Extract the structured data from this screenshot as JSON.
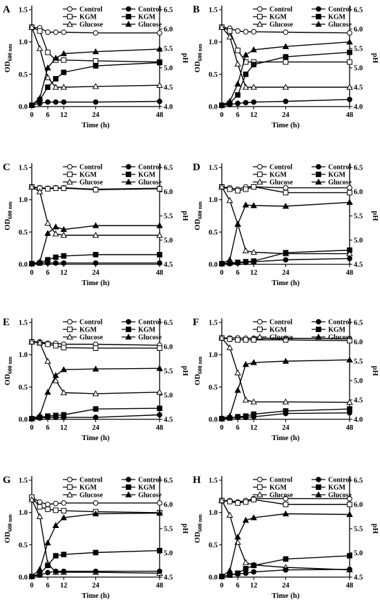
{
  "figure": {
    "x_axis_label": "Time (h)",
    "y_left_label": "OD600 nm",
    "y_left_base": "OD",
    "y_left_sub": "600 nm",
    "y_right_label": "pH",
    "od_ticks": [
      "0.0",
      "0.5",
      "1.0",
      "1.5"
    ],
    "x_ticks": [
      "0",
      "6",
      "12",
      "24",
      "48"
    ]
  },
  "legend_labels": [
    "Control",
    "KGM",
    "Glucose"
  ],
  "chart_data": [
    {
      "type": "line",
      "panel": "A",
      "x": [
        0,
        3,
        6,
        9,
        12,
        24,
        48
      ],
      "xlim": [
        0,
        48
      ],
      "od_ylim": [
        0,
        1.5
      ],
      "ph_ylim": [
        4.0,
        6.5
      ],
      "ph_ticks": [
        "4.0",
        "4.5",
        "5.0",
        "5.5",
        "6.0",
        "6.5"
      ],
      "series": [
        {
          "name": "Control",
          "axis": "ph",
          "marker": "circle",
          "filled": false,
          "values": [
            6.05,
            6.03,
            5.92,
            5.92,
            5.92,
            5.9,
            5.9
          ]
        },
        {
          "name": "KGM",
          "axis": "ph",
          "marker": "square",
          "filled": false,
          "values": [
            6.05,
            5.95,
            5.4,
            5.2,
            5.2,
            5.18,
            5.15
          ]
        },
        {
          "name": "Glucose",
          "axis": "ph",
          "marker": "triangle",
          "filled": false,
          "values": [
            6.05,
            5.5,
            4.75,
            4.5,
            4.5,
            4.52,
            4.55
          ]
        },
        {
          "name": "Control",
          "axis": "od",
          "marker": "circle",
          "filled": true,
          "values": [
            0.02,
            0.05,
            0.07,
            0.07,
            0.07,
            0.07,
            0.08
          ]
        },
        {
          "name": "KGM",
          "axis": "od",
          "marker": "square",
          "filled": true,
          "values": [
            0.02,
            0.1,
            0.3,
            0.43,
            0.53,
            0.63,
            0.68
          ]
        },
        {
          "name": "Glucose",
          "axis": "od",
          "marker": "triangle",
          "filled": true,
          "values": [
            0.02,
            0.13,
            0.6,
            0.75,
            0.82,
            0.85,
            0.89
          ]
        }
      ]
    },
    {
      "type": "line",
      "panel": "B",
      "x": [
        0,
        3,
        6,
        9,
        12,
        24,
        48
      ],
      "xlim": [
        0,
        48
      ],
      "od_ylim": [
        0,
        1.5
      ],
      "ph_ylim": [
        4.0,
        6.5
      ],
      "ph_ticks": [
        "4.0",
        "4.5",
        "5.0",
        "5.5",
        "6.0",
        "6.5"
      ],
      "series": [
        {
          "name": "Control",
          "axis": "ph",
          "marker": "circle",
          "filled": false,
          "values": [
            6.05,
            6.02,
            5.95,
            5.93,
            5.93,
            5.92,
            5.9
          ]
        },
        {
          "name": "KGM",
          "axis": "ph",
          "marker": "square",
          "filled": false,
          "values": [
            6.05,
            5.95,
            5.45,
            5.15,
            5.15,
            5.15,
            5.15
          ]
        },
        {
          "name": "Glucose",
          "axis": "ph",
          "marker": "triangle",
          "filled": false,
          "values": [
            6.05,
            5.8,
            5.1,
            4.5,
            4.5,
            4.5,
            4.5
          ]
        },
        {
          "name": "Control",
          "axis": "od",
          "marker": "circle",
          "filled": true,
          "values": [
            0.02,
            0.03,
            0.05,
            0.06,
            0.07,
            0.08,
            0.11
          ]
        },
        {
          "name": "KGM",
          "axis": "od",
          "marker": "square",
          "filled": true,
          "values": [
            0.02,
            0.05,
            0.18,
            0.5,
            0.65,
            0.77,
            0.84
          ]
        },
        {
          "name": "Glucose",
          "axis": "od",
          "marker": "triangle",
          "filled": true,
          "values": [
            0.02,
            0.08,
            0.35,
            0.8,
            0.88,
            0.93,
            1.0
          ]
        }
      ]
    },
    {
      "type": "line",
      "panel": "C",
      "x": [
        0,
        3,
        6,
        9,
        12,
        24,
        48
      ],
      "xlim": [
        0,
        48
      ],
      "od_ylim": [
        0,
        1.5
      ],
      "ph_ylim": [
        4.5,
        6.5
      ],
      "ph_ticks": [
        "4.5",
        "5.0",
        "5.5",
        "6.0",
        "6.5"
      ],
      "series": [
        {
          "name": "Control",
          "axis": "ph",
          "marker": "circle",
          "filled": false,
          "values": [
            6.1,
            6.08,
            6.07,
            6.08,
            6.08,
            6.05,
            6.07
          ]
        },
        {
          "name": "KGM",
          "axis": "ph",
          "marker": "square",
          "filled": false,
          "values": [
            6.1,
            6.07,
            6.06,
            6.07,
            6.07,
            6.04,
            6.06
          ]
        },
        {
          "name": "Glucose",
          "axis": "ph",
          "marker": "triangle",
          "filled": false,
          "values": [
            6.1,
            6.0,
            5.35,
            5.13,
            5.1,
            5.1,
            5.1
          ]
        },
        {
          "name": "Control",
          "axis": "od",
          "marker": "circle",
          "filled": true,
          "values": [
            0.01,
            0.02,
            0.02,
            0.02,
            0.02,
            0.02,
            0.02
          ]
        },
        {
          "name": "KGM",
          "axis": "od",
          "marker": "square",
          "filled": true,
          "values": [
            0.01,
            0.02,
            0.07,
            0.11,
            0.13,
            0.15,
            0.15
          ]
        },
        {
          "name": "Glucose",
          "axis": "od",
          "marker": "triangle",
          "filled": true,
          "values": [
            0.01,
            0.04,
            0.48,
            0.58,
            0.54,
            0.6,
            0.6
          ]
        }
      ]
    },
    {
      "type": "line",
      "panel": "D",
      "x": [
        0,
        3,
        6,
        9,
        12,
        24,
        48
      ],
      "xlim": [
        0,
        48
      ],
      "od_ylim": [
        0,
        1.5
      ],
      "ph_ylim": [
        4.5,
        6.5
      ],
      "ph_ticks": [
        "4.5",
        "5.0",
        "5.5",
        "6.0",
        "6.5"
      ],
      "series": [
        {
          "name": "Control",
          "axis": "ph",
          "marker": "circle",
          "filled": false,
          "values": [
            6.1,
            6.08,
            6.05,
            6.1,
            6.1,
            6.08,
            6.08
          ]
        },
        {
          "name": "KGM",
          "axis": "ph",
          "marker": "square",
          "filled": false,
          "values": [
            6.1,
            6.05,
            6.02,
            6.05,
            6.1,
            5.98,
            5.98
          ]
        },
        {
          "name": "Glucose",
          "axis": "ph",
          "marker": "triangle",
          "filled": false,
          "values": [
            6.1,
            5.82,
            5.33,
            4.78,
            4.75,
            4.72,
            4.72
          ]
        },
        {
          "name": "Control",
          "axis": "od",
          "marker": "circle",
          "filled": true,
          "values": [
            0.01,
            0.01,
            0.02,
            0.03,
            0.04,
            0.07,
            0.09
          ]
        },
        {
          "name": "KGM",
          "axis": "od",
          "marker": "square",
          "filled": true,
          "values": [
            0.01,
            0.02,
            0.03,
            0.04,
            0.05,
            0.18,
            0.22
          ]
        },
        {
          "name": "Glucose",
          "axis": "od",
          "marker": "triangle",
          "filled": true,
          "values": [
            0.01,
            0.07,
            0.62,
            0.92,
            0.91,
            0.9,
            0.96
          ]
        }
      ]
    },
    {
      "type": "line",
      "panel": "E",
      "x": [
        0,
        3,
        6,
        9,
        12,
        24,
        48
      ],
      "xlim": [
        0,
        48
      ],
      "od_ylim": [
        0,
        1.5
      ],
      "ph_ylim": [
        4.5,
        6.5
      ],
      "ph_ticks": [
        "4.5",
        "5.0",
        "5.5",
        "6.0",
        "6.5"
      ],
      "series": [
        {
          "name": "Control",
          "axis": "ph",
          "marker": "circle",
          "filled": false,
          "values": [
            6.1,
            6.1,
            6.07,
            6.07,
            6.05,
            6.05,
            6.03
          ]
        },
        {
          "name": "KGM",
          "axis": "ph",
          "marker": "square",
          "filled": false,
          "values": [
            6.1,
            6.08,
            6.05,
            6.02,
            5.98,
            5.97,
            5.97
          ]
        },
        {
          "name": "Glucose",
          "axis": "ph",
          "marker": "triangle",
          "filled": false,
          "values": [
            6.1,
            6.08,
            5.7,
            5.3,
            5.05,
            5.03,
            5.06
          ]
        },
        {
          "name": "Control",
          "axis": "od",
          "marker": "circle",
          "filled": true,
          "values": [
            0.01,
            0.02,
            0.03,
            0.03,
            0.03,
            0.03,
            0.07
          ]
        },
        {
          "name": "KGM",
          "axis": "od",
          "marker": "square",
          "filled": true,
          "values": [
            0.01,
            0.03,
            0.05,
            0.06,
            0.07,
            0.16,
            0.17
          ]
        },
        {
          "name": "Glucose",
          "axis": "od",
          "marker": "triangle",
          "filled": true,
          "values": [
            0.01,
            0.06,
            0.42,
            0.68,
            0.77,
            0.78,
            0.79
          ]
        }
      ]
    },
    {
      "type": "line",
      "panel": "F",
      "x": [
        0,
        3,
        6,
        9,
        12,
        24,
        48
      ],
      "xlim": [
        0,
        48
      ],
      "od_ylim": [
        0,
        1.5
      ],
      "ph_ylim": [
        4.0,
        6.5
      ],
      "ph_ticks": [
        "4.0",
        "4.5",
        "5.0",
        "5.5",
        "6.0",
        "6.5"
      ],
      "series": [
        {
          "name": "Control",
          "axis": "ph",
          "marker": "circle",
          "filled": false,
          "values": [
            6.1,
            6.1,
            6.1,
            6.09,
            6.09,
            6.09,
            6.08
          ]
        },
        {
          "name": "KGM",
          "axis": "ph",
          "marker": "square",
          "filled": false,
          "values": [
            6.1,
            6.07,
            6.05,
            6.05,
            6.05,
            6.05,
            6.03
          ]
        },
        {
          "name": "Glucose",
          "axis": "ph",
          "marker": "triangle",
          "filled": false,
          "values": [
            6.1,
            5.85,
            5.2,
            4.5,
            4.45,
            4.45,
            4.44
          ]
        },
        {
          "name": "Control",
          "axis": "od",
          "marker": "circle",
          "filled": true,
          "values": [
            0.01,
            0.02,
            0.03,
            0.03,
            0.04,
            0.09,
            0.1
          ]
        },
        {
          "name": "KGM",
          "axis": "od",
          "marker": "square",
          "filled": true,
          "values": [
            0.01,
            0.02,
            0.04,
            0.05,
            0.08,
            0.13,
            0.16
          ]
        },
        {
          "name": "Glucose",
          "axis": "od",
          "marker": "triangle",
          "filled": true,
          "values": [
            0.01,
            0.05,
            0.45,
            0.85,
            0.88,
            0.9,
            0.92
          ]
        }
      ]
    },
    {
      "type": "line",
      "panel": "G",
      "x": [
        0,
        3,
        6,
        9,
        12,
        24,
        48
      ],
      "xlim": [
        0,
        48
      ],
      "od_ylim": [
        0,
        1.5
      ],
      "ph_ylim": [
        4.5,
        6.5
      ],
      "ph_ticks": [
        "4.5",
        "5.0",
        "5.5",
        "6.0",
        "6.5"
      ],
      "series": [
        {
          "name": "Control",
          "axis": "ph",
          "marker": "circle",
          "filled": false,
          "values": [
            6.15,
            6.05,
            6.0,
            6.02,
            6.03,
            6.03,
            6.03
          ]
        },
        {
          "name": "KGM",
          "axis": "ph",
          "marker": "square",
          "filled": false,
          "values": [
            6.15,
            5.95,
            5.9,
            5.88,
            5.87,
            5.85,
            5.83
          ]
        },
        {
          "name": "Glucose",
          "axis": "ph",
          "marker": "triangle",
          "filled": false,
          "values": [
            6.1,
            5.75,
            4.78,
            4.6,
            4.6,
            4.6,
            4.58
          ]
        },
        {
          "name": "Control",
          "axis": "od",
          "marker": "circle",
          "filled": true,
          "values": [
            0.01,
            0.03,
            0.07,
            0.09,
            0.09,
            0.09,
            0.09
          ]
        },
        {
          "name": "KGM",
          "axis": "od",
          "marker": "square",
          "filled": true,
          "values": [
            0.01,
            0.05,
            0.18,
            0.33,
            0.35,
            0.38,
            0.41
          ]
        },
        {
          "name": "Glucose",
          "axis": "od",
          "marker": "triangle",
          "filled": true,
          "values": [
            0.01,
            0.12,
            0.53,
            0.8,
            0.92,
            0.98,
            0.99
          ]
        }
      ]
    },
    {
      "type": "line",
      "panel": "H",
      "x": [
        0,
        3,
        6,
        9,
        12,
        24,
        48
      ],
      "xlim": [
        0,
        48
      ],
      "od_ylim": [
        0,
        1.5
      ],
      "ph_ylim": [
        4.5,
        6.5
      ],
      "ph_ticks": [
        "4.5",
        "5.0",
        "5.5",
        "6.0",
        "6.5"
      ],
      "series": [
        {
          "name": "Control",
          "axis": "ph",
          "marker": "circle",
          "filled": false,
          "values": [
            6.08,
            6.08,
            6.05,
            6.08,
            6.12,
            6.12,
            6.12
          ]
        },
        {
          "name": "KGM",
          "axis": "ph",
          "marker": "square",
          "filled": false,
          "values": [
            6.08,
            6.06,
            6.03,
            6.05,
            6.1,
            6.0,
            6.0
          ]
        },
        {
          "name": "Glucose",
          "axis": "ph",
          "marker": "triangle",
          "filled": false,
          "values": [
            6.08,
            5.78,
            5.22,
            4.8,
            4.75,
            4.7,
            4.65
          ]
        },
        {
          "name": "Control",
          "axis": "od",
          "marker": "circle",
          "filled": true,
          "values": [
            0.01,
            0.03,
            0.05,
            0.06,
            0.08,
            0.11,
            0.12
          ]
        },
        {
          "name": "KGM",
          "axis": "od",
          "marker": "square",
          "filled": true,
          "values": [
            0.01,
            0.03,
            0.06,
            0.13,
            0.18,
            0.28,
            0.33
          ]
        },
        {
          "name": "Glucose",
          "axis": "od",
          "marker": "triangle",
          "filled": true,
          "values": [
            0.01,
            0.1,
            0.62,
            0.88,
            0.92,
            0.98,
            0.97
          ]
        }
      ]
    }
  ]
}
